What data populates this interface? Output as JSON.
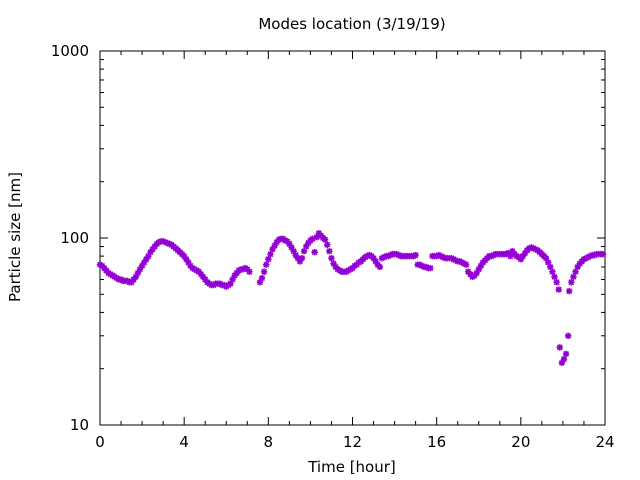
{
  "chart_data": {
    "type": "scatter",
    "title": "Modes location (3/19/19)",
    "xlabel": "Time [hour]",
    "ylabel": "Particle size [nm]",
    "xlim": [
      0,
      24
    ],
    "ylim": [
      10,
      1000
    ],
    "y_scale": "log",
    "x_ticks": [
      0,
      4,
      8,
      12,
      16,
      20,
      24
    ],
    "x_tick_labels": [
      "0",
      "4",
      "8",
      "12",
      "16",
      "20",
      "24"
    ],
    "y_ticks": [
      10,
      100,
      1000
    ],
    "y_tick_labels": [
      "10",
      "100",
      "1000"
    ],
    "grid": false,
    "legend": "none",
    "marker": "asterisk",
    "point_color": "#9400d3",
    "series": [
      {
        "x": [
          0.0,
          0.1,
          0.2,
          0.3,
          0.4,
          0.5,
          0.6,
          0.7,
          0.8,
          0.9,
          1.0,
          1.1,
          1.2,
          1.3,
          1.4,
          1.5,
          1.6,
          1.7,
          1.8,
          1.9,
          2.0,
          2.1,
          2.2,
          2.3,
          2.4,
          2.5,
          2.6,
          2.7,
          2.8,
          2.9,
          3.0,
          3.1,
          3.2,
          3.3,
          3.4,
          3.5,
          3.6,
          3.7,
          3.8,
          3.9,
          4.0,
          4.1,
          4.2,
          4.3,
          4.4,
          4.5,
          4.6,
          4.7,
          4.8,
          4.9,
          5.0,
          5.1,
          5.2,
          5.3,
          5.4,
          5.5,
          5.6,
          5.7,
          5.8,
          5.9,
          6.0,
          6.1,
          6.2,
          6.3,
          6.4,
          6.5,
          6.6,
          6.7,
          6.8,
          6.9,
          7.0,
          7.1,
          7.6,
          7.7,
          7.8,
          7.9,
          8.0,
          8.1,
          8.2,
          8.3,
          8.4,
          8.5,
          8.6,
          8.7,
          8.8,
          8.9,
          9.0,
          9.1,
          9.2,
          9.3,
          9.4,
          9.5,
          9.6,
          9.7,
          9.8,
          9.9,
          10.0,
          10.1,
          10.2,
          10.3,
          10.4,
          10.5,
          10.6,
          10.7,
          10.8,
          10.9,
          11.0,
          11.1,
          11.2,
          11.3,
          11.4,
          11.5,
          11.6,
          11.7,
          11.8,
          11.9,
          12.0,
          12.1,
          12.2,
          12.3,
          12.4,
          12.5,
          12.6,
          12.7,
          12.8,
          12.9,
          13.0,
          13.1,
          13.2,
          13.3,
          13.4,
          13.5,
          13.6,
          13.7,
          13.8,
          13.9,
          14.0,
          14.1,
          14.2,
          14.3,
          14.4,
          14.5,
          14.6,
          14.7,
          14.8,
          14.9,
          15.0,
          15.1,
          15.2,
          15.3,
          15.4,
          15.5,
          15.6,
          15.7,
          15.8,
          15.9,
          16.0,
          16.1,
          16.2,
          16.3,
          16.4,
          16.5,
          16.6,
          16.7,
          16.8,
          16.9,
          17.0,
          17.1,
          17.2,
          17.3,
          17.4,
          17.5,
          17.6,
          17.7,
          17.8,
          17.9,
          18.0,
          18.1,
          18.2,
          18.3,
          18.4,
          18.5,
          18.6,
          18.7,
          18.8,
          18.9,
          19.0,
          19.1,
          19.2,
          19.3,
          19.4,
          19.5,
          19.6,
          19.7,
          19.8,
          19.9,
          20.0,
          20.1,
          20.2,
          20.3,
          20.4,
          20.5,
          20.6,
          20.7,
          20.8,
          20.9,
          21.0,
          21.1,
          21.2,
          21.3,
          21.4,
          21.5,
          21.6,
          21.7,
          21.8,
          21.85,
          21.95,
          22.05,
          22.15,
          22.25,
          22.3,
          22.4,
          22.5,
          22.6,
          22.7,
          22.8,
          22.9,
          23.0,
          23.1,
          23.2,
          23.3,
          23.4,
          23.5,
          23.6,
          23.7,
          23.8,
          23.9
        ],
        "y": [
          72,
          71,
          69,
          67,
          65,
          64,
          63,
          62,
          61,
          60,
          60,
          59,
          59,
          59,
          58,
          58,
          60,
          62,
          65,
          68,
          71,
          74,
          77,
          80,
          84,
          87,
          90,
          93,
          95,
          96,
          96,
          95,
          94,
          93,
          92,
          90,
          88,
          86,
          84,
          82,
          80,
          77,
          74,
          71,
          69,
          68,
          67,
          66,
          64,
          62,
          60,
          58,
          57,
          56,
          56,
          57,
          57,
          57,
          56,
          56,
          55,
          56,
          57,
          60,
          63,
          65,
          67,
          68,
          68,
          69,
          68,
          66,
          58,
          61,
          66,
          72,
          77,
          82,
          87,
          91,
          95,
          98,
          99,
          99,
          97,
          96,
          93,
          89,
          85,
          81,
          78,
          75,
          78,
          85,
          90,
          94,
          97,
          99,
          84,
          101,
          106,
          103,
          100,
          98,
          92,
          85,
          78,
          73,
          70,
          68,
          67,
          66,
          66,
          66,
          67,
          68,
          69,
          71,
          72,
          74,
          75,
          77,
          79,
          80,
          81,
          80,
          78,
          75,
          72,
          70,
          78,
          79,
          80,
          80,
          81,
          82,
          82,
          82,
          81,
          80,
          80,
          80,
          80,
          80,
          80,
          80,
          81,
          72,
          72,
          71,
          70,
          70,
          69,
          69,
          80,
          80,
          80,
          81,
          80,
          79,
          78,
          78,
          78,
          78,
          77,
          76,
          75,
          75,
          74,
          73,
          72,
          66,
          64,
          62,
          63,
          65,
          68,
          71,
          74,
          76,
          78,
          80,
          80,
          81,
          82,
          82,
          82,
          82,
          82,
          82,
          83,
          80,
          85,
          82,
          80,
          79,
          77,
          80,
          83,
          86,
          88,
          89,
          88,
          87,
          86,
          84,
          82,
          80,
          78,
          74,
          70,
          66,
          62,
          58,
          53,
          26,
          21.5,
          22.5,
          24,
          30,
          52,
          58,
          62,
          66,
          70,
          73,
          75,
          77,
          78,
          79,
          80,
          81,
          81,
          82,
          82,
          82,
          82
        ]
      }
    ]
  }
}
